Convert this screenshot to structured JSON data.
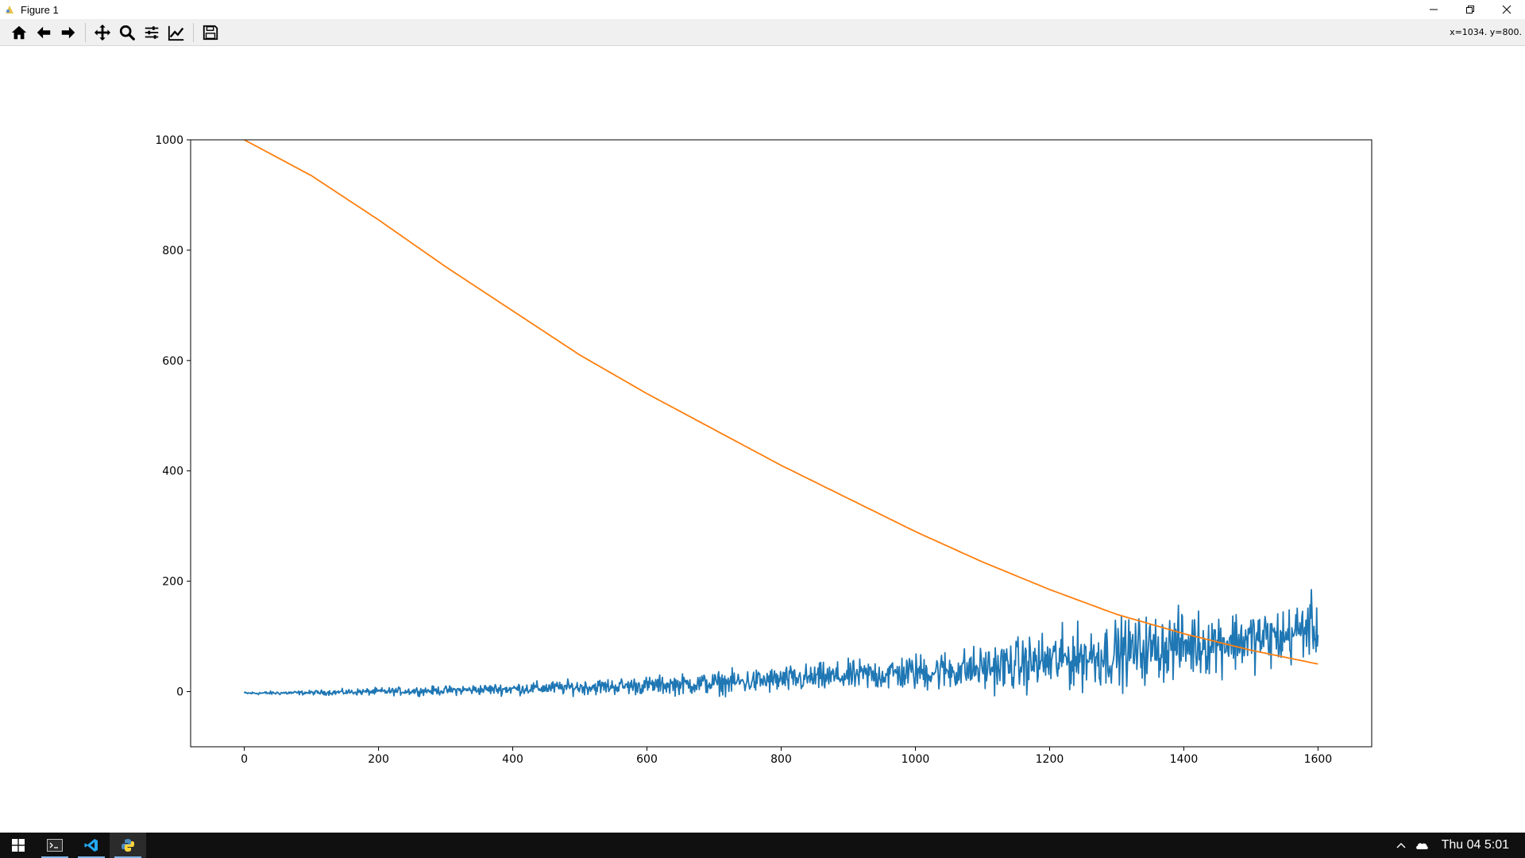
{
  "window": {
    "title": "Figure 1",
    "controls": [
      "minimize",
      "restore",
      "close"
    ]
  },
  "toolbar": {
    "buttons": [
      {
        "name": "home-button",
        "icon": "home-icon"
      },
      {
        "name": "back-button",
        "icon": "arrow-left-icon"
      },
      {
        "name": "forward-button",
        "icon": "arrow-right-icon"
      },
      {
        "name": "pan-button",
        "icon": "move-icon"
      },
      {
        "name": "zoom-button",
        "icon": "magnifier-icon"
      },
      {
        "name": "subplots-button",
        "icon": "sliders-icon"
      },
      {
        "name": "axes-edit-button",
        "icon": "line-chart-icon"
      },
      {
        "name": "save-button",
        "icon": "floppy-icon"
      }
    ],
    "coordinates": "x=1034. y=800."
  },
  "chart_data": {
    "type": "line",
    "title": "",
    "xlabel": "",
    "ylabel": "",
    "xlim": [
      -80,
      1680
    ],
    "ylim": [
      -100,
      1000
    ],
    "xticks": [
      0,
      200,
      400,
      600,
      800,
      1000,
      1200,
      1400,
      1600
    ],
    "yticks": [
      0,
      200,
      400,
      600,
      800,
      1000
    ],
    "grid": false,
    "legend": "none",
    "series": [
      {
        "color": "#1f77b4",
        "x": [
          0,
          100,
          200,
          300,
          400,
          500,
          600,
          700,
          800,
          900,
          1000,
          1100,
          1200,
          1300,
          1400,
          1500,
          1550,
          1590,
          1600
        ],
        "values": [
          -3,
          -2,
          0,
          2,
          5,
          8,
          11,
          15,
          21,
          28,
          35,
          42,
          55,
          70,
          85,
          95,
          98,
          120,
          100
        ],
        "noise_amplitude": [
          2,
          3,
          5,
          6,
          8,
          10,
          12,
          15,
          18,
          20,
          25,
          30,
          40,
          45,
          45,
          40,
          40,
          40,
          30
        ]
      },
      {
        "color": "#ff7f0e",
        "x": [
          0,
          100,
          200,
          300,
          400,
          500,
          600,
          700,
          800,
          900,
          1000,
          1100,
          1200,
          1300,
          1400,
          1500,
          1600
        ],
        "values": [
          1000,
          935,
          855,
          770,
          690,
          610,
          540,
          475,
          410,
          350,
          290,
          235,
          185,
          140,
          105,
          75,
          50
        ]
      }
    ]
  },
  "taskbar": {
    "apps": [
      {
        "name": "windows-start",
        "icon": "windows-icon"
      },
      {
        "name": "terminal",
        "icon": "terminal-icon"
      },
      {
        "name": "vscode",
        "icon": "vscode-icon"
      },
      {
        "name": "python-figure",
        "icon": "python-icon"
      }
    ],
    "clock": "Thu 04 5:01"
  },
  "colors": {
    "taskbar_bg": "#101010",
    "toolbar_bg": "#f0f0f0",
    "series_blue": "#1f77b4",
    "series_orange": "#ff7f0e"
  }
}
